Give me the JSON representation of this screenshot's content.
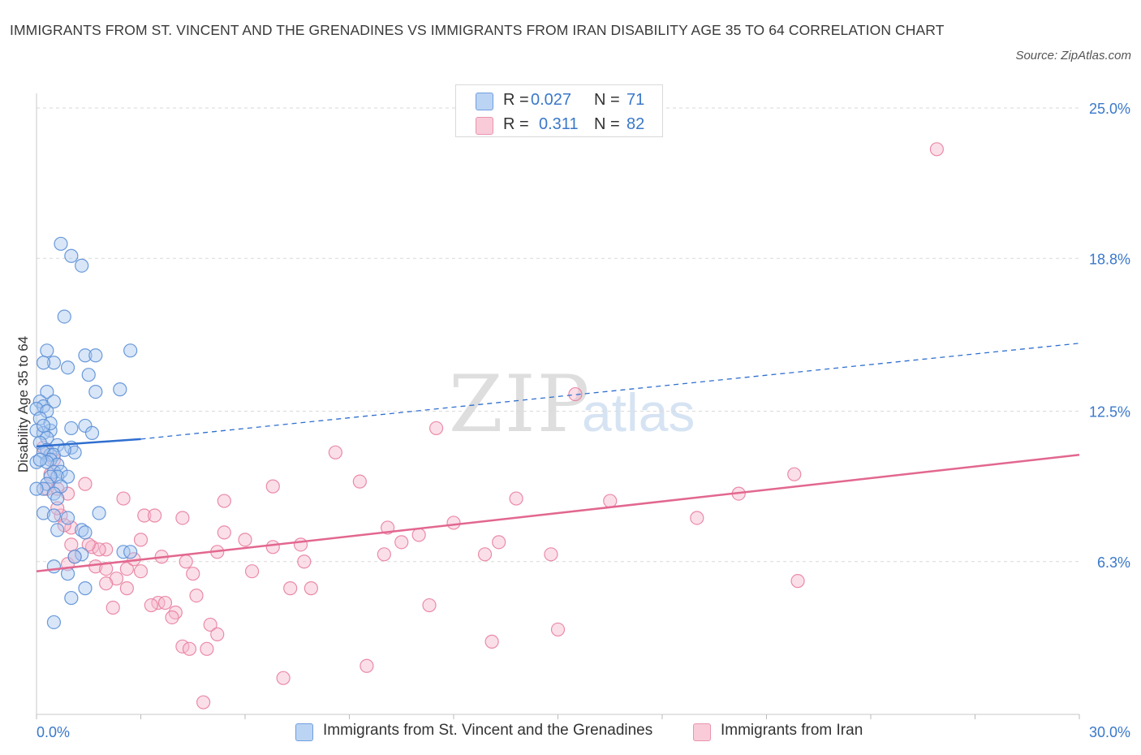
{
  "header": {
    "title": "IMMIGRANTS FROM ST. VINCENT AND THE GRENADINES VS IMMIGRANTS FROM IRAN DISABILITY AGE 35 TO 64 CORRELATION CHART",
    "source": "Source: ZipAtlas.com"
  },
  "legend": {
    "r_label": "R =",
    "n_label": "N =",
    "blue": {
      "r": "0.027",
      "n": "71"
    },
    "pink": {
      "r": "0.311",
      "n": "82"
    }
  },
  "watermark": {
    "zip": "ZIP",
    "atlas": "atlas"
  },
  "colors": {
    "blue_fill": "#a9c8f0",
    "blue_stroke": "#5b8fd6",
    "blue_line": "#2f6fcf",
    "pink_fill": "#f6b8cb",
    "pink_stroke": "#e8809f",
    "pink_line": "#e2678f",
    "axis_label": "#3a78c9",
    "grid": "#d9d9d9"
  },
  "chart_data": {
    "type": "scatter",
    "title": "IMMIGRANTS FROM ST. VINCENT AND THE GRENADINES VS IMMIGRANTS FROM IRAN DISABILITY AGE 35 TO 64 CORRELATION CHART",
    "xlabel": "",
    "ylabel": "Disability Age 35 to 64",
    "xlim": [
      0,
      30
    ],
    "ylim": [
      0,
      25
    ],
    "x_tick_labels": [
      "0.0%",
      "30.0%"
    ],
    "y_ticks": [
      6.3,
      12.5,
      18.8,
      25.0
    ],
    "y_tick_labels": [
      "6.3%",
      "12.5%",
      "18.8%",
      "25.0%"
    ],
    "grid": true,
    "legend_position": "top-center",
    "series": [
      {
        "name": "Immigrants from St. Vincent and the Grenadines",
        "color": "#a9c8f0",
        "r": 0.027,
        "n": 71,
        "trend": {
          "x": [
            0,
            3.0
          ],
          "y": [
            11.05,
            11.35
          ],
          "extended_x": [
            3.0,
            30
          ],
          "extended_y": [
            11.35,
            15.3
          ]
        },
        "points": [
          [
            0.7,
            19.4
          ],
          [
            1.0,
            18.9
          ],
          [
            1.3,
            18.5
          ],
          [
            0.8,
            16.4
          ],
          [
            0.3,
            15.0
          ],
          [
            1.4,
            14.8
          ],
          [
            1.7,
            14.8
          ],
          [
            2.7,
            15.0
          ],
          [
            0.5,
            14.5
          ],
          [
            0.9,
            14.3
          ],
          [
            0.2,
            14.5
          ],
          [
            1.5,
            14.0
          ],
          [
            2.4,
            13.4
          ],
          [
            1.7,
            13.3
          ],
          [
            0.3,
            13.3
          ],
          [
            0.1,
            12.9
          ],
          [
            0.2,
            12.7
          ],
          [
            0.5,
            12.9
          ],
          [
            0.0,
            12.6
          ],
          [
            0.3,
            12.5
          ],
          [
            0.1,
            12.2
          ],
          [
            1.0,
            11.8
          ],
          [
            1.4,
            11.9
          ],
          [
            1.6,
            11.6
          ],
          [
            0.4,
            11.7
          ],
          [
            0.2,
            11.6
          ],
          [
            0.0,
            11.7
          ],
          [
            0.3,
            11.4
          ],
          [
            0.6,
            11.1
          ],
          [
            0.1,
            11.2
          ],
          [
            1.0,
            11.0
          ],
          [
            0.3,
            10.9
          ],
          [
            0.4,
            10.7
          ],
          [
            0.2,
            10.8
          ],
          [
            0.5,
            10.7
          ],
          [
            1.1,
            10.8
          ],
          [
            0.4,
            10.5
          ],
          [
            0.6,
            10.3
          ],
          [
            0.0,
            10.4
          ],
          [
            0.3,
            10.4
          ],
          [
            0.5,
            10.0
          ],
          [
            0.7,
            10.0
          ],
          [
            0.6,
            9.8
          ],
          [
            0.4,
            9.8
          ],
          [
            0.9,
            9.8
          ],
          [
            0.3,
            9.5
          ],
          [
            0.2,
            9.3
          ],
          [
            0.7,
            9.4
          ],
          [
            0.5,
            9.1
          ],
          [
            0.6,
            8.9
          ],
          [
            0.0,
            9.3
          ],
          [
            0.2,
            8.3
          ],
          [
            0.5,
            8.2
          ],
          [
            0.9,
            8.1
          ],
          [
            1.8,
            8.3
          ],
          [
            0.6,
            7.6
          ],
          [
            1.3,
            7.6
          ],
          [
            1.4,
            7.5
          ],
          [
            2.5,
            6.7
          ],
          [
            1.3,
            6.6
          ],
          [
            1.1,
            6.5
          ],
          [
            2.7,
            6.7
          ],
          [
            0.5,
            6.1
          ],
          [
            0.9,
            5.8
          ],
          [
            1.4,
            5.2
          ],
          [
            1.0,
            4.8
          ],
          [
            0.5,
            3.8
          ],
          [
            0.1,
            10.5
          ],
          [
            0.4,
            12.0
          ],
          [
            0.2,
            11.9
          ],
          [
            0.8,
            10.9
          ]
        ]
      },
      {
        "name": "Immigrants from Iran",
        "color": "#f6b8cb",
        "r": 0.311,
        "n": 82,
        "trend": {
          "x": [
            0,
            30
          ],
          "y": [
            5.9,
            10.7
          ]
        },
        "points": [
          [
            25.9,
            23.3
          ],
          [
            15.5,
            13.2
          ],
          [
            11.5,
            11.8
          ],
          [
            8.6,
            10.8
          ],
          [
            21.8,
            9.9
          ],
          [
            9.3,
            9.6
          ],
          [
            6.8,
            9.4
          ],
          [
            20.2,
            9.1
          ],
          [
            2.5,
            8.9
          ],
          [
            5.4,
            8.8
          ],
          [
            13.8,
            8.9
          ],
          [
            16.5,
            8.8
          ],
          [
            1.4,
            9.5
          ],
          [
            0.3,
            9.3
          ],
          [
            0.6,
            9.3
          ],
          [
            19.0,
            8.1
          ],
          [
            3.1,
            8.2
          ],
          [
            3.4,
            8.2
          ],
          [
            4.2,
            8.1
          ],
          [
            0.7,
            8.2
          ],
          [
            12.0,
            7.9
          ],
          [
            10.1,
            7.7
          ],
          [
            5.4,
            7.5
          ],
          [
            1.0,
            7.7
          ],
          [
            0.8,
            7.8
          ],
          [
            11.0,
            7.4
          ],
          [
            10.5,
            7.1
          ],
          [
            13.3,
            7.1
          ],
          [
            7.6,
            7.0
          ],
          [
            3.0,
            7.2
          ],
          [
            1.0,
            7.0
          ],
          [
            1.6,
            6.9
          ],
          [
            6.8,
            6.9
          ],
          [
            2.0,
            6.8
          ],
          [
            1.8,
            6.8
          ],
          [
            12.9,
            6.6
          ],
          [
            14.8,
            6.6
          ],
          [
            5.2,
            6.7
          ],
          [
            10.0,
            6.6
          ],
          [
            3.6,
            6.5
          ],
          [
            7.7,
            6.3
          ],
          [
            4.3,
            6.3
          ],
          [
            1.7,
            6.1
          ],
          [
            2.0,
            6.0
          ],
          [
            2.6,
            6.0
          ],
          [
            3.0,
            5.9
          ],
          [
            6.2,
            5.9
          ],
          [
            4.5,
            5.8
          ],
          [
            2.3,
            5.6
          ],
          [
            0.9,
            6.2
          ],
          [
            21.9,
            5.5
          ],
          [
            2.0,
            5.4
          ],
          [
            7.3,
            5.2
          ],
          [
            7.9,
            5.2
          ],
          [
            2.6,
            5.2
          ],
          [
            4.6,
            4.9
          ],
          [
            3.5,
            4.6
          ],
          [
            3.7,
            4.6
          ],
          [
            3.3,
            4.5
          ],
          [
            11.3,
            4.5
          ],
          [
            2.2,
            4.4
          ],
          [
            4.0,
            4.2
          ],
          [
            3.9,
            4.0
          ],
          [
            5.0,
            3.7
          ],
          [
            15.0,
            3.5
          ],
          [
            5.2,
            3.3
          ],
          [
            13.1,
            3.0
          ],
          [
            4.2,
            2.8
          ],
          [
            4.4,
            2.7
          ],
          [
            4.9,
            2.7
          ],
          [
            9.5,
            2.0
          ],
          [
            7.1,
            1.5
          ],
          [
            4.8,
            0.5
          ],
          [
            0.4,
            9.9
          ],
          [
            0.2,
            11.0
          ],
          [
            0.5,
            10.5
          ],
          [
            1.5,
            7.0
          ],
          [
            0.6,
            8.5
          ],
          [
            2.8,
            6.4
          ],
          [
            1.1,
            6.5
          ],
          [
            6.0,
            7.2
          ],
          [
            0.9,
            9.1
          ]
        ]
      }
    ]
  },
  "bottom_legend": [
    {
      "label": "Immigrants from St. Vincent and the Grenadines"
    },
    {
      "label": "Immigrants from Iran"
    }
  ]
}
